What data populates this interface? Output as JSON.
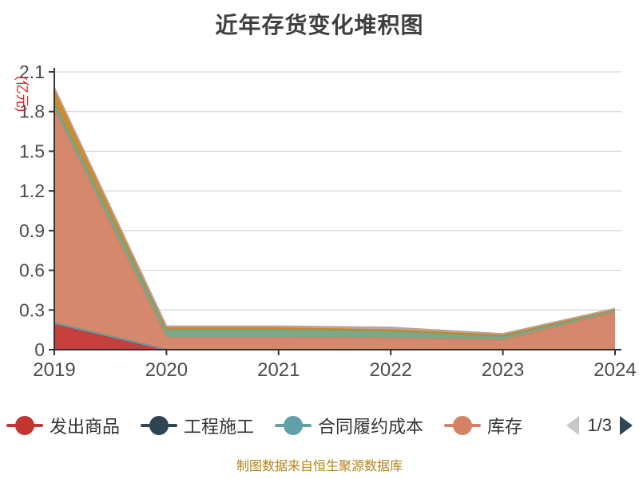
{
  "title": "近年存货变化堆积图",
  "footer": "制图数据来自恒生聚源数据库",
  "legend": {
    "items": [
      {
        "label": "发出商品",
        "color": "#c23531"
      },
      {
        "label": "工程施工",
        "color": "#2f4554"
      },
      {
        "label": "合同履约成本",
        "color": "#61a0a8"
      },
      {
        "label": "库存",
        "color": "#d48265"
      }
    ],
    "pager": {
      "current": "1/3",
      "prev_color": "#c4c8cb",
      "next_color": "#2f4554"
    }
  },
  "chart_data": {
    "type": "area",
    "stacked": true,
    "title": "近年存货变化堆积图",
    "x": [
      "2019",
      "2020",
      "2021",
      "2022",
      "2023",
      "2024"
    ],
    "xlabel": "",
    "ylabel": "(亿元)",
    "ylabel_color": "#e01f1f",
    "ylim": [
      0,
      2.1
    ],
    "y_tick_step": 0.3,
    "y_ticks": [
      "0",
      "0.3",
      "0.6",
      "0.9",
      "1.2",
      "1.5",
      "1.8",
      "2.1"
    ],
    "grid": true,
    "legend_position": "bottom",
    "series": [
      {
        "name": "发出商品",
        "color": "#c23531",
        "in_legend": true,
        "values": [
          0.2,
          0,
          0,
          0,
          0,
          0
        ]
      },
      {
        "name": "工程施工",
        "color": "#2f4554",
        "in_legend": true,
        "values": [
          0,
          0,
          0,
          0,
          0,
          0
        ]
      },
      {
        "name": "合同履约成本",
        "color": "#61a0a8",
        "in_legend": true,
        "values": [
          0,
          0,
          0,
          0,
          0,
          0
        ]
      },
      {
        "name": "库存",
        "color": "#d48265",
        "in_legend": true,
        "values": [
          1.61,
          0.09,
          0.09,
          0.085,
          0.07,
          0.28
        ]
      },
      {
        "name": "",
        "color": "#75a381",
        "in_legend": false,
        "values": [
          0.05,
          0.06,
          0.06,
          0.056,
          0.03,
          0.02
        ]
      },
      {
        "name": "",
        "color": "#ca8622",
        "in_legend": false,
        "values": [
          0.11,
          0.012,
          0.012,
          0.007,
          0.008,
          0.005
        ]
      },
      {
        "name": "",
        "color": "#bda29a",
        "in_legend": false,
        "values": [
          0.01,
          0.015,
          0.015,
          0.02,
          0.012,
          0.005
        ]
      }
    ],
    "axis_color": "#333333",
    "grid_color": "#cccccc",
    "tick_label_color": "#4d4d4d"
  }
}
